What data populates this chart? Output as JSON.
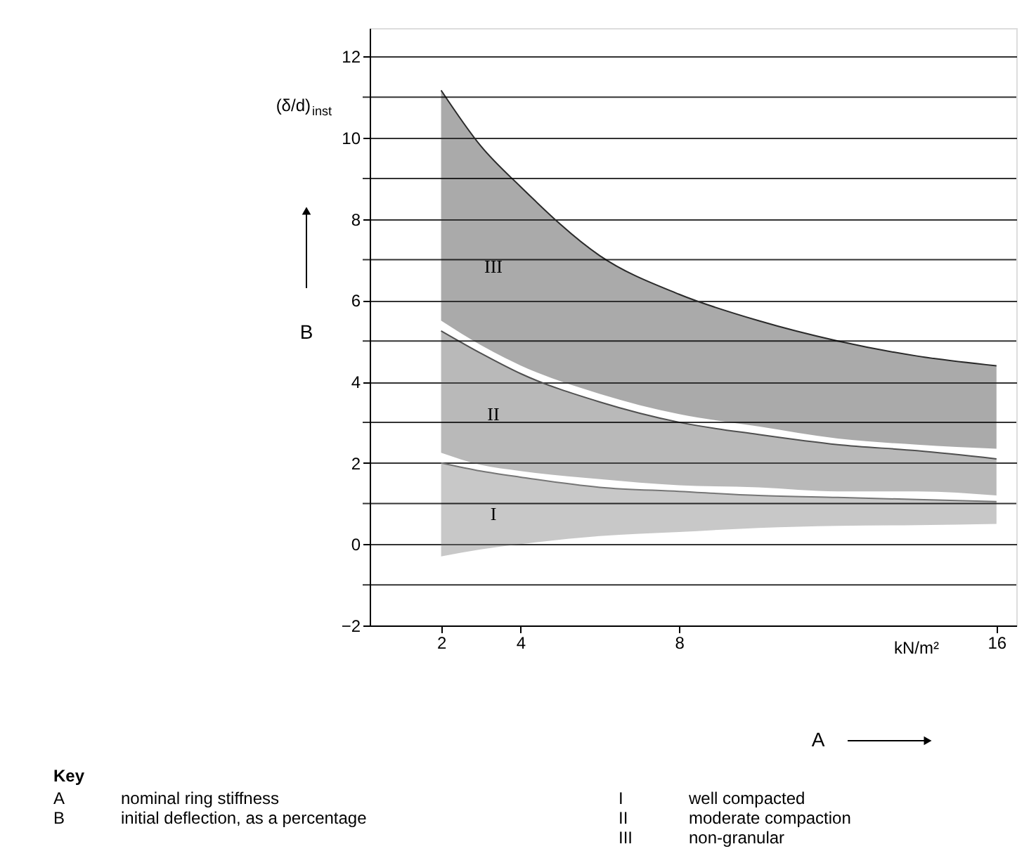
{
  "chart_data": {
    "type": "area",
    "xlabel": "A",
    "ylabel": "B",
    "x": [
      2,
      3,
      4,
      6,
      8,
      10,
      12,
      14,
      16
    ],
    "series": [
      {
        "type": "line",
        "color": "#2a2a2a",
        "values": [
          11.17,
          9.8,
          8.8,
          7.1,
          6.15,
          5.5,
          5.0,
          4.63,
          4.39
        ],
        "upper": [
          11.17,
          9.8,
          8.8,
          7.1,
          6.15,
          5.5,
          5.0,
          4.63,
          4.39
        ],
        "lower": [
          5.5,
          4.9,
          4.4,
          3.7,
          3.2,
          2.9,
          2.6,
          2.45,
          2.35
        ]
      },
      {
        "type": "line",
        "color": "#505050",
        "values": [
          5.25,
          4.7,
          4.2,
          3.5,
          3.0,
          2.7,
          2.45,
          2.3,
          2.1
        ],
        "upper": [
          5.25,
          4.7,
          4.2,
          3.5,
          3.0,
          2.7,
          2.45,
          2.3,
          2.1
        ],
        "lower": [
          2.25,
          1.95,
          1.8,
          1.6,
          1.45,
          1.4,
          1.3,
          1.3,
          1.2
        ]
      },
      {
        "type": "line",
        "color": "#767676",
        "values": [
          2.0,
          1.8,
          1.65,
          1.4,
          1.3,
          1.2,
          1.15,
          1.1,
          1.05
        ],
        "upper": [
          2.0,
          1.8,
          1.65,
          1.4,
          1.3,
          1.2,
          1.15,
          1.1,
          1.05
        ],
        "lower": [
          -0.3,
          -0.13,
          0.0,
          0.2,
          0.3,
          0.4,
          0.45,
          0.47,
          0.5
        ]
      }
    ],
    "xlim": [
      0.2,
      16.5
    ],
    "ylim": [
      -2,
      12.7
    ],
    "xticks": [
      2,
      4,
      8,
      16
    ],
    "yticks": [
      -2,
      {
        "value": -1,
        "label": null
      },
      0,
      {
        "value": 1,
        "label": null
      },
      2,
      {
        "value": 3,
        "label": null
      },
      4,
      {
        "value": 5,
        "label": null
      },
      6,
      {
        "value": 7,
        "label": null
      },
      8,
      {
        "value": 9,
        "label": null
      },
      10,
      {
        "value": 11,
        "label": null
      },
      12
    ],
    "grid": "y",
    "annotations": [
      "kN/m²",
      "(δ/d)$_{inst}$",
      "Key",
      "A",
      "nominal ring stiffness",
      "B",
      "initial deflection, as a percentage",
      "I",
      "well compacted",
      "II",
      "moderate compaction",
      "III",
      "non-granular",
      "III",
      "II",
      "I"
    ]
  }
}
